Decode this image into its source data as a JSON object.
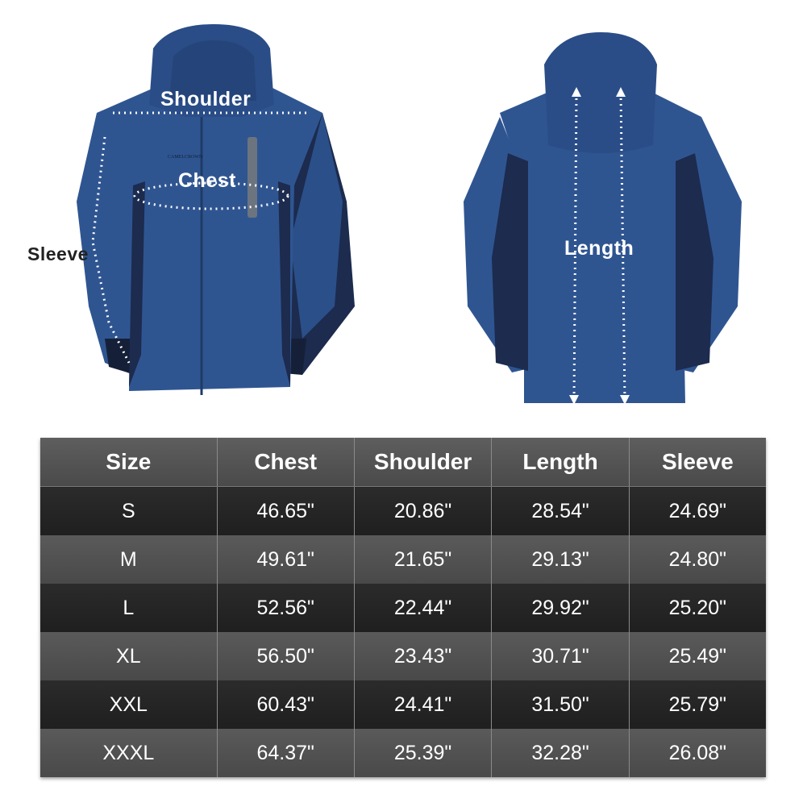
{
  "brand_logo": "CAMELCROWN",
  "colors": {
    "jacket_main": "#2f5591",
    "jacket_dark": "#1c2b4e",
    "table_dark_row": "#252525",
    "table_light_row": "#505050"
  },
  "labels": {
    "shoulder": "Shoulder",
    "chest": "Chest",
    "sleeve": "Sleeve",
    "length": "Length"
  },
  "table": {
    "headers": [
      "Size",
      "Chest",
      "Shoulder",
      "Length",
      "Sleeve"
    ],
    "rows": [
      [
        "S",
        "46.65\"",
        "20.86\"",
        "28.54\"",
        "24.69\""
      ],
      [
        "M",
        "49.61\"",
        "21.65\"",
        "29.13\"",
        "24.80\""
      ],
      [
        "L",
        "52.56\"",
        "22.44\"",
        "29.92\"",
        "25.20\""
      ],
      [
        "XL",
        "56.50\"",
        "23.43\"",
        "30.71\"",
        "25.49\""
      ],
      [
        "XXL",
        "60.43\"",
        "24.41\"",
        "31.50\"",
        "25.79\""
      ],
      [
        "XXXL",
        "64.37\"",
        "25.39\"",
        "32.28\"",
        "26.08\""
      ]
    ]
  }
}
